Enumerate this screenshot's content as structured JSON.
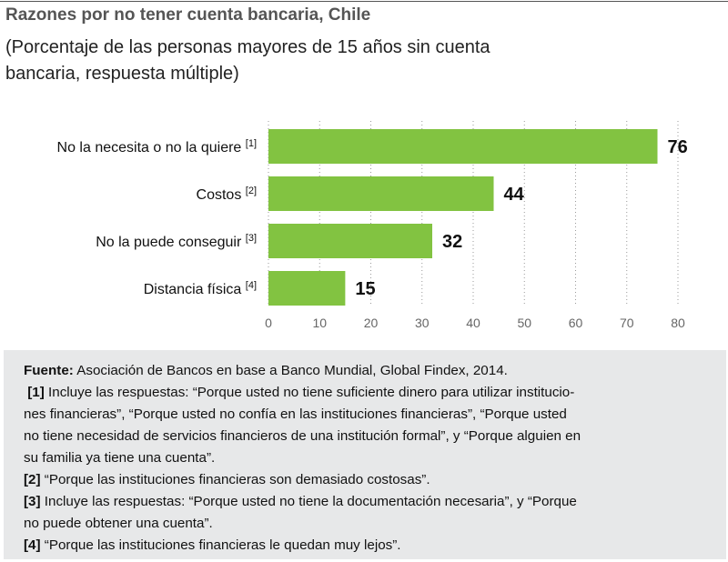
{
  "title": "Razones por no tener cuenta bancaria, Chile",
  "subtitle": "(Porcentaje de las personas mayores de 15 años sin cuenta bancaria, respuesta múltiple)",
  "chart_data": {
    "type": "bar",
    "orientation": "horizontal",
    "categories": [
      {
        "label": "No la necesita o no la quiere",
        "note": "[1]"
      },
      {
        "label": "Costos",
        "note": "[2]"
      },
      {
        "label": "No la puede conseguir",
        "note": "[3]"
      },
      {
        "label": "Distancia física",
        "note": "[4]"
      }
    ],
    "values": [
      76,
      44,
      32,
      15
    ],
    "xlim": [
      0,
      80
    ],
    "xticks": [
      0,
      10,
      20,
      30,
      40,
      50,
      60,
      70,
      80
    ],
    "grid": "vertical dotted",
    "bar_color": "#82c341"
  },
  "notes": {
    "source_label": "Fuente:",
    "source_text": " Asociación de Bancos en base a Banco Mundial, Global Findex, 2014.",
    "items": [
      {
        "key": "[1]",
        "lines": [
          "Incluye las respuestas: “Porque usted no tiene suficiente dinero para utilizar institucio-",
          "nes financieras”, “Porque usted no confía en las instituciones financieras”, “Porque usted",
          "no tiene necesidad de servicios financieros de una institución formal”, y “Porque alguien en",
          "su familia ya tiene una cuenta”."
        ]
      },
      {
        "key": "[2]",
        "lines": [
          "“Porque las instituciones financieras son demasiado costosas”."
        ]
      },
      {
        "key": "[3]",
        "lines": [
          "Incluye las respuestas: “Porque usted no tiene la documentación necesaria”, y “Porque",
          "no puede obtener una cuenta”."
        ]
      },
      {
        "key": "[4]",
        "lines": [
          "“Porque las instituciones financieras le quedan muy lejos”."
        ]
      }
    ]
  }
}
